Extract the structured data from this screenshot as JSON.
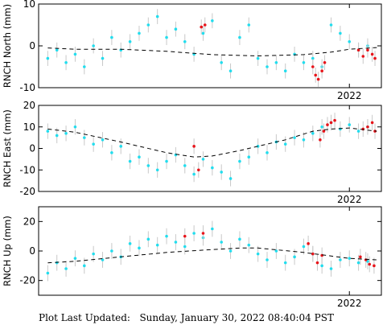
{
  "footer": {
    "label": "Plot Last Updated:",
    "value": "Sunday, January 30, 2022 08:40:04 PST"
  },
  "colors": {
    "point": "#22ddee",
    "recent_point": "#e8141a",
    "error_bar": "#c8c8c8",
    "trend": "#000000",
    "axes": "#000000"
  },
  "chart_data": [
    {
      "type": "scatter",
      "ylabel": "RNCH North (mm)",
      "x_tick_label": "2022",
      "x_tick_value": 2022.0,
      "xlim": [
        2018.6,
        2022.35
      ],
      "ylim": [
        -10,
        10
      ],
      "yticks": [
        -10,
        0,
        10
      ],
      "trend": {
        "x": [
          2018.7,
          2019.0,
          2019.5,
          2020.0,
          2020.5,
          2021.0,
          2021.5,
          2021.8,
          2022.0,
          2022.3
        ],
        "y": [
          -0.5,
          -0.8,
          -0.8,
          -1.3,
          -2.1,
          -2.4,
          -2.1,
          -1.5,
          -0.8,
          -0.4
        ]
      },
      "series": [
        {
          "x": [
            2018.7,
            2018.8,
            2018.9,
            2019.0,
            2019.1,
            2019.2,
            2019.3,
            2019.4,
            2019.5,
            2019.6,
            2019.7,
            2019.8,
            2019.9,
            2020.0,
            2020.1,
            2020.2,
            2020.3,
            2020.4,
            2020.5,
            2020.6,
            2020.7,
            2020.8,
            2020.9,
            2021.0,
            2021.1,
            2021.2,
            2021.3,
            2021.4,
            2021.5,
            2021.6,
            2021.7,
            2021.8,
            2021.9,
            2022.0,
            2022.1,
            2022.2
          ],
          "y": [
            -3.0,
            -1.0,
            -4.0,
            -2.0,
            -5.0,
            0.0,
            -3.0,
            2.0,
            -1.0,
            1.0,
            3.0,
            5.0,
            7.0,
            2.0,
            4.0,
            1.0,
            -2.0,
            3.0,
            6.0,
            -4.0,
            -6.0,
            2.0,
            5.0,
            -3.0,
            -5.0,
            -4.0,
            -6.0,
            -2.0,
            -4.0,
            -3.0,
            -5.0,
            5.0,
            3.0,
            1.0,
            -1.0,
            0.0
          ]
        },
        {
          "x": [
            2020.38,
            2020.42,
            2021.6,
            2021.63,
            2021.66,
            2021.7,
            2021.73,
            2022.1,
            2022.15,
            2022.2,
            2022.25,
            2022.28
          ],
          "y": [
            4.5,
            5.0,
            -5.0,
            -7.0,
            -8.0,
            -6.0,
            -4.0,
            -1.0,
            -2.5,
            -1.0,
            -2.0,
            -3.0
          ]
        }
      ]
    },
    {
      "type": "scatter",
      "ylabel": "RNCH East (mm)",
      "x_tick_label": "2022",
      "x_tick_value": 2022.0,
      "xlim": [
        2018.6,
        2022.35
      ],
      "ylim": [
        -20,
        20
      ],
      "yticks": [
        -20,
        -10,
        0,
        10,
        20
      ],
      "trend": {
        "x": [
          2018.7,
          2019.0,
          2019.5,
          2020.0,
          2020.3,
          2020.5,
          2020.8,
          2021.0,
          2021.3,
          2021.6,
          2021.8,
          2022.0,
          2022.3
        ],
        "y": [
          9.0,
          7.5,
          3.0,
          -2.0,
          -4.0,
          -3.5,
          -1.0,
          1.0,
          4.0,
          8.0,
          9.0,
          9.5,
          8.0
        ]
      },
      "series": [
        {
          "x": [
            2018.7,
            2018.8,
            2018.9,
            2019.0,
            2019.1,
            2019.2,
            2019.3,
            2019.4,
            2019.5,
            2019.6,
            2019.7,
            2019.8,
            2019.9,
            2020.0,
            2020.1,
            2020.2,
            2020.3,
            2020.4,
            2020.5,
            2020.6,
            2020.7,
            2020.8,
            2020.9,
            2021.0,
            2021.1,
            2021.2,
            2021.3,
            2021.4,
            2021.5,
            2021.6,
            2021.7,
            2021.8,
            2021.9,
            2022.0,
            2022.1,
            2022.2
          ],
          "y": [
            8.0,
            6.0,
            7.0,
            10.0,
            5.0,
            2.0,
            4.0,
            -2.0,
            1.0,
            -6.0,
            -4.0,
            -8.0,
            -10.0,
            -6.0,
            -3.0,
            -8.0,
            -12.0,
            -5.0,
            -9.0,
            -11.0,
            -14.0,
            -6.0,
            -4.0,
            1.0,
            -2.0,
            3.0,
            2.0,
            5.0,
            4.0,
            7.0,
            10.0,
            12.0,
            9.0,
            11.0,
            8.0,
            10.0
          ]
        },
        {
          "x": [
            2020.3,
            2020.35,
            2021.68,
            2021.72,
            2021.76,
            2021.8,
            2021.84,
            2022.15,
            2022.2,
            2022.25,
            2022.28
          ],
          "y": [
            1.0,
            -10.0,
            4.0,
            8.0,
            11.0,
            12.0,
            13.0,
            9.0,
            10.0,
            12.0,
            8.0
          ]
        }
      ]
    },
    {
      "type": "scatter",
      "ylabel": "RNCH Up (mm)",
      "x_tick_label": "2022",
      "x_tick_value": 2022.0,
      "xlim": [
        2018.6,
        2022.35
      ],
      "ylim": [
        -30,
        30
      ],
      "yticks": [
        -20,
        0,
        20
      ],
      "trend": {
        "x": [
          2018.7,
          2019.0,
          2019.5,
          2020.0,
          2020.5,
          2020.8,
          2021.0,
          2021.5,
          2022.0,
          2022.3
        ],
        "y": [
          -8.0,
          -7.0,
          -4.0,
          -1.0,
          1.0,
          2.0,
          2.0,
          -1.0,
          -5.0,
          -6.0
        ]
      },
      "series": [
        {
          "x": [
            2018.7,
            2018.8,
            2018.9,
            2019.0,
            2019.1,
            2019.2,
            2019.3,
            2019.4,
            2019.5,
            2019.6,
            2019.7,
            2019.8,
            2019.9,
            2020.0,
            2020.1,
            2020.2,
            2020.3,
            2020.4,
            2020.5,
            2020.6,
            2020.7,
            2020.8,
            2020.9,
            2021.0,
            2021.1,
            2021.2,
            2021.3,
            2021.4,
            2021.5,
            2021.6,
            2021.7,
            2021.8,
            2021.9,
            2022.0,
            2022.1,
            2022.2
          ],
          "y": [
            -15.0,
            -8.0,
            -12.0,
            -5.0,
            -10.0,
            -2.0,
            -6.0,
            0.0,
            -4.0,
            5.0,
            2.0,
            8.0,
            4.0,
            10.0,
            6.0,
            3.0,
            12.0,
            9.0,
            15.0,
            6.0,
            0.0,
            8.0,
            4.0,
            -2.0,
            -6.0,
            0.0,
            -8.0,
            -4.0,
            3.0,
            -2.0,
            -10.0,
            -12.0,
            -6.0,
            -5.0,
            -8.0,
            -7.0
          ]
        },
        {
          "x": [
            2020.2,
            2020.4,
            2021.55,
            2021.6,
            2021.65,
            2021.7,
            2022.12,
            2022.18,
            2022.22,
            2022.27
          ],
          "y": [
            10.0,
            12.0,
            5.0,
            -2.0,
            -8.0,
            -3.0,
            -4.0,
            -6.0,
            -9.0,
            -10.0
          ]
        }
      ]
    }
  ]
}
